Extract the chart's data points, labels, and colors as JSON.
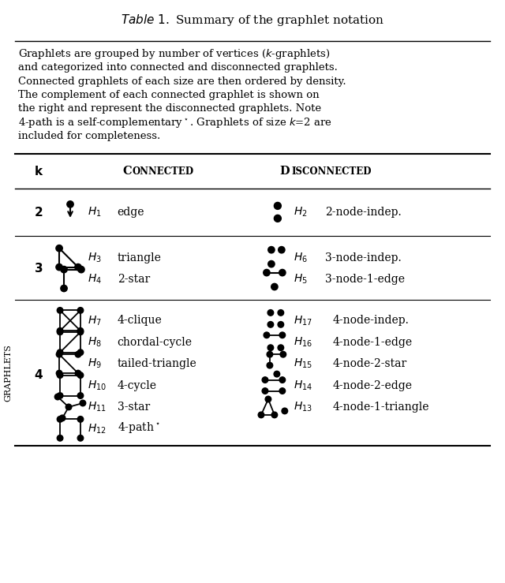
{
  "title": "Table 1. Summary of the graphlet notation",
  "caption_lines": [
    "Graphlets are grouped by number of vertices ($k$-graphlets)",
    "and categorized into connected and disconnected graphlets.",
    "Connected graphlets of each size are then ordered by density.",
    "The complement of each connected graphlet is shown on",
    "the right and represent the disconnected graphlets. Note",
    "4-path is a self-complementary$^\\star$. Graphlets of size $k$=2 are",
    "included for completeness."
  ],
  "header_k": "k",
  "header_connected": "Connected",
  "header_disconnected": "Disconnected",
  "ylabel": "GRAPHLETS",
  "bg_color": "#ffffff",
  "text_color": "#000000",
  "font_size": 10,
  "title_font_size": 11
}
